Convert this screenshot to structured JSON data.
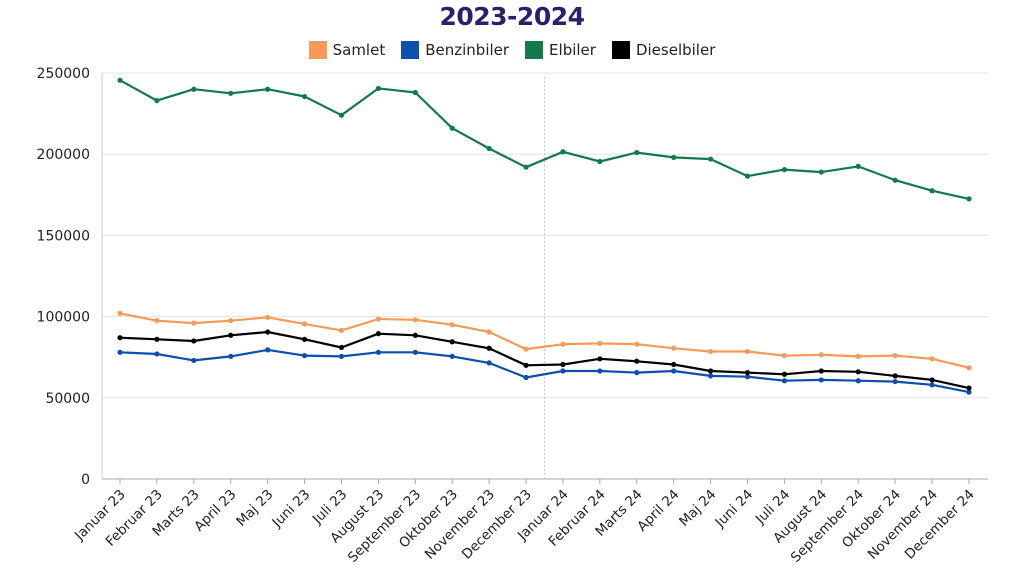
{
  "chart_data": {
    "type": "line",
    "title": "2023-2024",
    "xlabel": "",
    "ylabel": "",
    "ylim": [
      0,
      250000
    ],
    "yticks": [
      0,
      50000,
      100000,
      150000,
      200000,
      250000
    ],
    "grid": true,
    "legend_position": "top-center",
    "categories": [
      "Januar 23",
      "Februar 23",
      "Marts 23",
      "April 23",
      "Maj 23",
      "Juni 23",
      "Juli 23",
      "August 23",
      "September 23",
      "Oktober 23",
      "November 23",
      "December 23",
      "Januar 24",
      "Februar 24",
      "Marts 24",
      "April 24",
      "Maj 24",
      "Juni 24",
      "Juli 24",
      "August 24",
      "September 24",
      "Oktober 24",
      "November 24",
      "December 24"
    ],
    "series": [
      {
        "name": "Samlet",
        "color": "#f59a58",
        "values": [
          102000,
          97500,
          96000,
          97500,
          99500,
          95500,
          91500,
          98500,
          98000,
          95000,
          90500,
          80000,
          83000,
          83500,
          83000,
          80500,
          78500,
          78500,
          76000,
          76500,
          75500,
          76000,
          74000,
          68500
        ]
      },
      {
        "name": "Benzinbiler",
        "color": "#0e4fae",
        "values": [
          78000,
          77000,
          73000,
          75500,
          79500,
          76000,
          75500,
          78000,
          78000,
          75500,
          71500,
          62500,
          66500,
          66500,
          65500,
          66500,
          63500,
          63000,
          60500,
          61000,
          60500,
          60000,
          58000,
          53500
        ]
      },
      {
        "name": "Elbiler",
        "color": "#137a4a",
        "values": [
          245500,
          233000,
          240000,
          237500,
          240000,
          235500,
          224000,
          240500,
          238000,
          216000,
          203500,
          192000,
          201500,
          195500,
          201000,
          198000,
          197000,
          186500,
          190500,
          189000,
          192500,
          184000,
          177500,
          172500
        ]
      },
      {
        "name": "Dieselbiler",
        "color": "#000000",
        "values": [
          87000,
          86000,
          85000,
          88500,
          90500,
          86000,
          81000,
          89500,
          88500,
          84500,
          80500,
          70000,
          70500,
          74000,
          72500,
          70500,
          66500,
          65500,
          64500,
          66500,
          66000,
          63500,
          61000,
          56000
        ]
      }
    ]
  }
}
